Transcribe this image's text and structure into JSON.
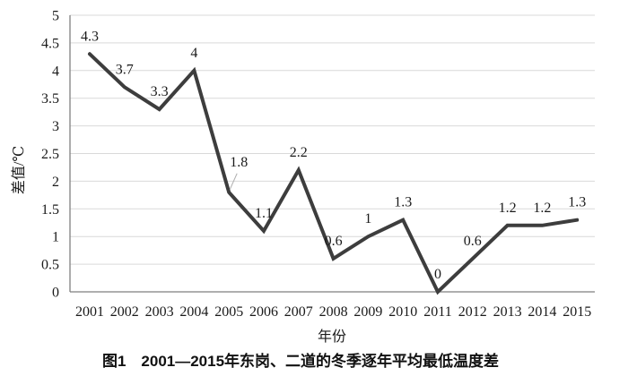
{
  "figure": {
    "caption": "图1　2001—2015年东岗、二道的冬季逐年平均最低温度差"
  },
  "chart_data": {
    "type": "line",
    "title": "",
    "xlabel": "年份",
    "ylabel": "差值/℃",
    "categories": [
      "2001",
      "2002",
      "2003",
      "2004",
      "2005",
      "2006",
      "2007",
      "2008",
      "2009",
      "2010",
      "2011",
      "2012",
      "2013",
      "2014",
      "2015"
    ],
    "values": [
      4.3,
      3.7,
      3.3,
      4,
      1.8,
      1.1,
      2.2,
      0.6,
      1,
      1.3,
      0,
      0.6,
      1.2,
      1.2,
      1.3
    ],
    "point_labels": [
      "4.3",
      "3.7",
      "3.3",
      "4",
      "1.8",
      "1.1",
      "2.2",
      "0.6",
      "1",
      "1.3",
      "0",
      "0.6",
      "1.2",
      "1.2",
      "1.3"
    ],
    "ylim": [
      0,
      5
    ],
    "yticks": [
      "0",
      "0.5",
      "1",
      "1.5",
      "2",
      "2.5",
      "3",
      "3.5",
      "4",
      "4.5",
      "5"
    ],
    "grid": true,
    "legend": "none",
    "callout": {
      "index": 4,
      "dx": 11,
      "dy": -29
    },
    "colors": {
      "line": "#3d3d3d",
      "grid": "#d9d9d9",
      "axis": "#7f7f7f",
      "text": "#1a1a1a",
      "leader": "#b0b0b0"
    }
  }
}
